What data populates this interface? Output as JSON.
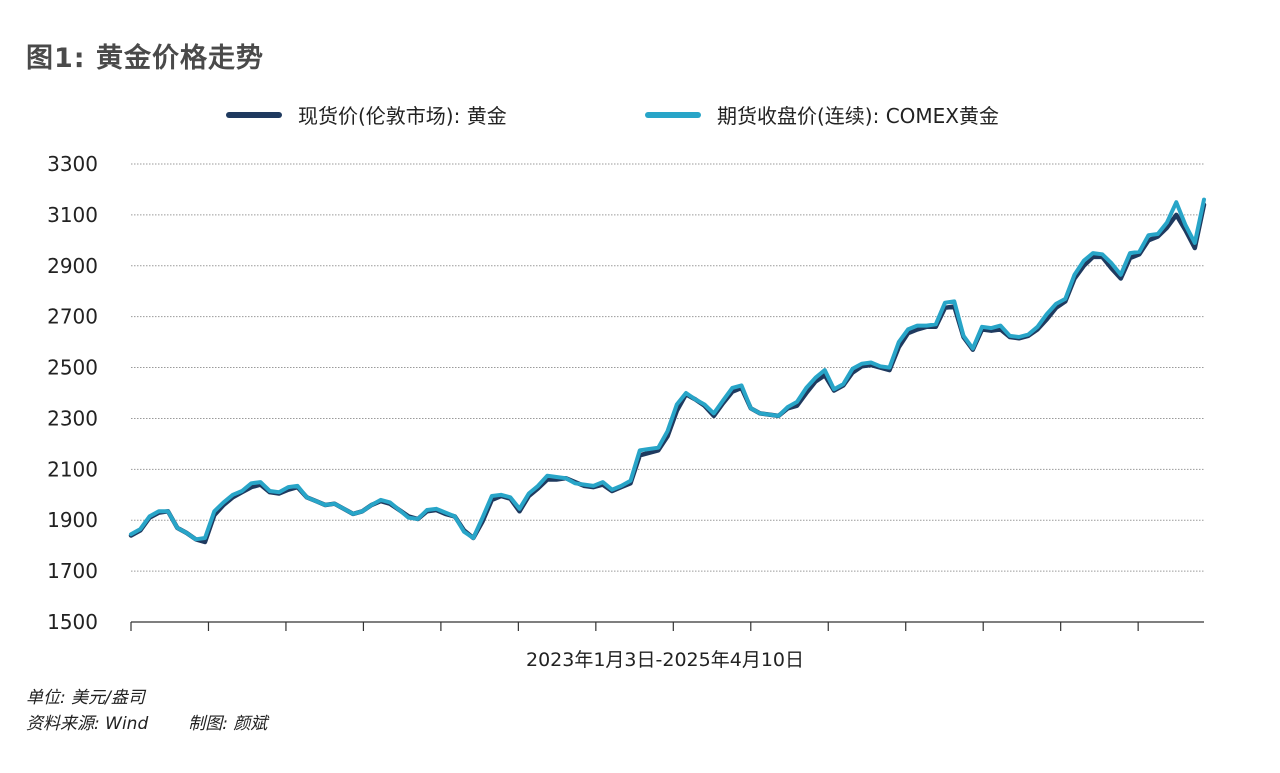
{
  "title": "图1: 黄金价格走势",
  "colors": {
    "spot": "#1f3a5f",
    "futures": "#28a5c8",
    "grid": "#9a9a9a",
    "axis": "#333333"
  },
  "legend": [
    {
      "label": "现货价(伦敦市场): 黄金",
      "color": "#1f3a5f"
    },
    {
      "label": "期货收盘价(连续): COMEX黄金",
      "color": "#28a5c8"
    }
  ],
  "xcaption": "2023年1月3日-2025年4月10日",
  "footnote": {
    "unit": "单位: 美元/盎司",
    "source": "资料来源: Wind",
    "author": "制图: 颜斌"
  },
  "chart_data": {
    "type": "line",
    "title": "黄金价格走势",
    "xlabel": "2023年1月3日-2025年4月10日",
    "ylabel": "",
    "x_range": [
      "2023-01-03",
      "2025-04-10"
    ],
    "ylim": [
      1500,
      3300
    ],
    "yticks": [
      1500,
      1700,
      1900,
      2100,
      2300,
      2500,
      2700,
      2900,
      3100,
      3300
    ],
    "grid": true,
    "legend_position": "top",
    "series": [
      {
        "name": "现货价(伦敦市场): 黄金",
        "values": [
          1840,
          1860,
          1910,
          1930,
          1935,
          1870,
          1850,
          1825,
          1815,
          1920,
          1960,
          1990,
          2010,
          2030,
          2040,
          2010,
          2005,
          2020,
          2030,
          1990,
          1975,
          1960,
          1965,
          1945,
          1925,
          1935,
          1960,
          1975,
          1965,
          1940,
          1915,
          1905,
          1935,
          1940,
          1925,
          1915,
          1860,
          1830,
          1895,
          1980,
          1995,
          1985,
          1935,
          1995,
          2025,
          2060,
          2060,
          2065,
          2050,
          2035,
          2030,
          2040,
          2015,
          2030,
          2045,
          2155,
          2165,
          2175,
          2230,
          2330,
          2395,
          2375,
          2350,
          2310,
          2360,
          2405,
          2420,
          2340,
          2320,
          2315,
          2310,
          2340,
          2350,
          2400,
          2445,
          2470,
          2410,
          2430,
          2480,
          2505,
          2510,
          2500,
          2490,
          2580,
          2635,
          2650,
          2660,
          2660,
          2735,
          2740,
          2620,
          2570,
          2650,
          2645,
          2650,
          2620,
          2615,
          2625,
          2650,
          2690,
          2735,
          2760,
          2850,
          2900,
          2935,
          2935,
          2890,
          2850,
          2930,
          2945,
          3000,
          3015,
          3050,
          3100,
          3040,
          2970,
          3140
        ]
      },
      {
        "name": "期货收盘价(连续): COMEX黄金",
        "values": [
          1845,
          1865,
          1915,
          1935,
          1935,
          1870,
          1850,
          1825,
          1830,
          1935,
          1970,
          2000,
          2015,
          2045,
          2050,
          2015,
          2010,
          2030,
          2035,
          1990,
          1975,
          1960,
          1965,
          1945,
          1925,
          1935,
          1960,
          1980,
          1970,
          1940,
          1910,
          1905,
          1940,
          1945,
          1930,
          1915,
          1855,
          1830,
          1910,
          1995,
          2000,
          1990,
          1945,
          2005,
          2035,
          2075,
          2070,
          2065,
          2045,
          2040,
          2035,
          2050,
          2020,
          2035,
          2055,
          2175,
          2180,
          2185,
          2250,
          2355,
          2400,
          2375,
          2355,
          2320,
          2370,
          2420,
          2430,
          2340,
          2320,
          2315,
          2310,
          2345,
          2365,
          2420,
          2460,
          2490,
          2415,
          2435,
          2495,
          2515,
          2520,
          2505,
          2500,
          2600,
          2650,
          2665,
          2665,
          2670,
          2755,
          2760,
          2625,
          2575,
          2660,
          2655,
          2665,
          2625,
          2620,
          2630,
          2660,
          2710,
          2750,
          2770,
          2865,
          2920,
          2950,
          2945,
          2910,
          2865,
          2950,
          2955,
          3020,
          3025,
          3070,
          3150,
          3060,
          2990,
          3160
        ]
      }
    ]
  }
}
